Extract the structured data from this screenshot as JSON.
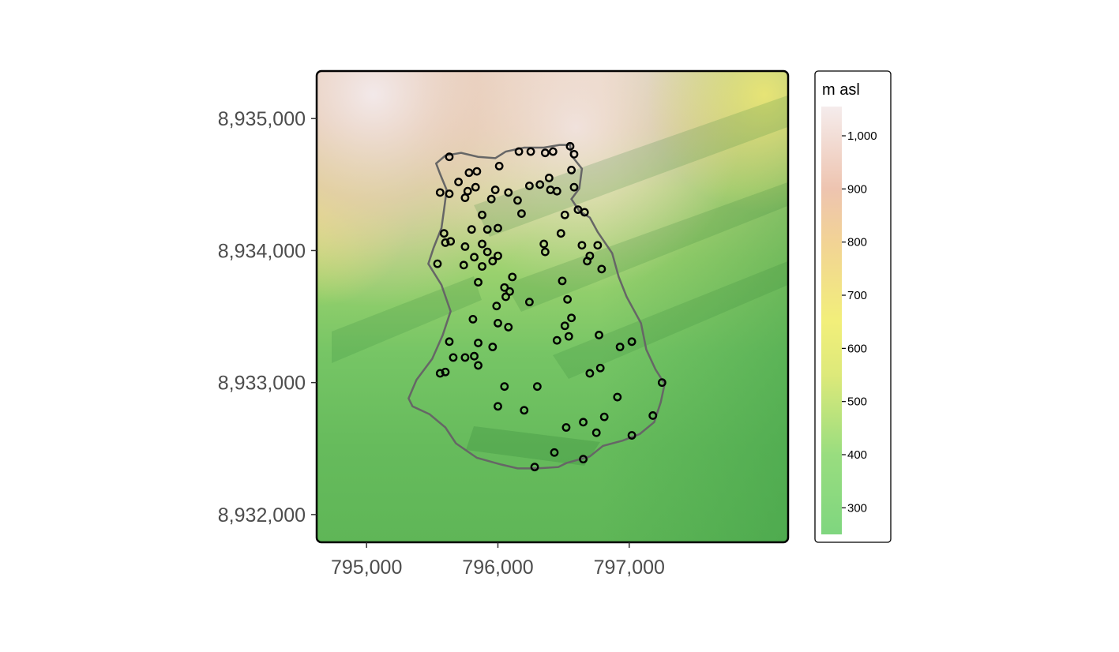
{
  "axes": {
    "x": {
      "unit": "m",
      "ticks": [
        795000,
        796000,
        797000
      ],
      "tick_labels": [
        "795,000",
        "796,000",
        "797,000"
      ],
      "range": [
        794620,
        798210
      ]
    },
    "y": {
      "unit": "m",
      "ticks": [
        8932000,
        8933000,
        8934000,
        8935000
      ],
      "tick_labels": [
        "8,932,000",
        "8,933,000",
        "8,934,000",
        "8,935,000"
      ],
      "range": [
        8931790,
        8935360
      ]
    }
  },
  "legend": {
    "title": "m asl",
    "labels": [
      {
        "text": "1,000",
        "value": 1000
      },
      {
        "text": "900",
        "value": 900
      },
      {
        "text": "800",
        "value": 800
      },
      {
        "text": "700",
        "value": 700
      },
      {
        "text": "600",
        "value": 600
      },
      {
        "text": "500",
        "value": 500
      },
      {
        "text": "400",
        "value": 400
      },
      {
        "text": "300",
        "value": 300
      }
    ],
    "range": [
      250,
      1055
    ],
    "color_stops": [
      {
        "value": 250,
        "color": "#7fd67f"
      },
      {
        "value": 400,
        "color": "#99dd7f"
      },
      {
        "value": 550,
        "color": "#dde97a"
      },
      {
        "value": 650,
        "color": "#f2ef7a"
      },
      {
        "value": 800,
        "color": "#f2d395"
      },
      {
        "value": 900,
        "color": "#eec4b0"
      },
      {
        "value": 1055,
        "color": "#f5ecec"
      }
    ]
  },
  "colors": {
    "boundary": "#666666",
    "points": "#000000",
    "frame": "#000000"
  },
  "boundary": [
    [
      795530,
      8934660
    ],
    [
      795600,
      8934720
    ],
    [
      795720,
      8934740
    ],
    [
      795850,
      8934710
    ],
    [
      795980,
      8934700
    ],
    [
      796060,
      8934750
    ],
    [
      796200,
      8934780
    ],
    [
      796350,
      8934780
    ],
    [
      796470,
      8934800
    ],
    [
      796550,
      8934800
    ],
    [
      796560,
      8934720
    ],
    [
      796640,
      8934620
    ],
    [
      796620,
      8934470
    ],
    [
      796560,
      8934390
    ],
    [
      796620,
      8934300
    ],
    [
      796700,
      8934250
    ],
    [
      796760,
      8934140
    ],
    [
      796870,
      8933980
    ],
    [
      796920,
      8933800
    ],
    [
      796980,
      8933650
    ],
    [
      797090,
      8933450
    ],
    [
      797130,
      8933250
    ],
    [
      797200,
      8933100
    ],
    [
      797270,
      8932990
    ],
    [
      797240,
      8932850
    ],
    [
      797190,
      8932700
    ],
    [
      797080,
      8932610
    ],
    [
      796950,
      8932560
    ],
    [
      796800,
      8932520
    ],
    [
      796700,
      8932440
    ],
    [
      796520,
      8932390
    ],
    [
      796460,
      8932360
    ],
    [
      796300,
      8932350
    ],
    [
      796150,
      8932350
    ],
    [
      796020,
      8932380
    ],
    [
      795840,
      8932430
    ],
    [
      795680,
      8932540
    ],
    [
      795600,
      8932660
    ],
    [
      795480,
      8932760
    ],
    [
      795350,
      8932820
    ],
    [
      795320,
      8932880
    ],
    [
      795380,
      8933020
    ],
    [
      795500,
      8933180
    ],
    [
      795580,
      8933360
    ],
    [
      795640,
      8933540
    ],
    [
      795570,
      8933740
    ],
    [
      795470,
      8933900
    ],
    [
      795510,
      8934020
    ],
    [
      795570,
      8934170
    ],
    [
      795590,
      8934310
    ],
    [
      795610,
      8934460
    ],
    [
      795560,
      8934580
    ],
    [
      795530,
      8934660
    ]
  ],
  "points": [
    [
      795630,
      8934710
    ],
    [
      796010,
      8934640
    ],
    [
      796160,
      8934750
    ],
    [
      796250,
      8934750
    ],
    [
      796360,
      8934740
    ],
    [
      796420,
      8934750
    ],
    [
      796550,
      8934790
    ],
    [
      796580,
      8934730
    ],
    [
      795780,
      8934590
    ],
    [
      795840,
      8934600
    ],
    [
      796560,
      8934610
    ],
    [
      795700,
      8934520
    ],
    [
      796390,
      8934550
    ],
    [
      795560,
      8934440
    ],
    [
      795630,
      8934430
    ],
    [
      795770,
      8934450
    ],
    [
      795830,
      8934480
    ],
    [
      795980,
      8934460
    ],
    [
      796080,
      8934440
    ],
    [
      796240,
      8934490
    ],
    [
      796320,
      8934500
    ],
    [
      796400,
      8934460
    ],
    [
      796450,
      8934450
    ],
    [
      796580,
      8934480
    ],
    [
      795750,
      8934400
    ],
    [
      795950,
      8934390
    ],
    [
      796150,
      8934380
    ],
    [
      796180,
      8934280
    ],
    [
      795880,
      8934270
    ],
    [
      796510,
      8934270
    ],
    [
      796610,
      8934310
    ],
    [
      796660,
      8934290
    ],
    [
      795800,
      8934160
    ],
    [
      795920,
      8934160
    ],
    [
      796000,
      8934170
    ],
    [
      796480,
      8934130
    ],
    [
      795590,
      8934130
    ],
    [
      795600,
      8934060
    ],
    [
      795640,
      8934070
    ],
    [
      796350,
      8934050
    ],
    [
      795750,
      8934030
    ],
    [
      795880,
      8934050
    ],
    [
      796640,
      8934040
    ],
    [
      796760,
      8934040
    ],
    [
      795920,
      8933990
    ],
    [
      795820,
      8933950
    ],
    [
      796000,
      8933960
    ],
    [
      796360,
      8933990
    ],
    [
      795540,
      8933900
    ],
    [
      795740,
      8933890
    ],
    [
      795880,
      8933880
    ],
    [
      795960,
      8933920
    ],
    [
      796700,
      8933960
    ],
    [
      796680,
      8933920
    ],
    [
      796790,
      8933860
    ],
    [
      796110,
      8933800
    ],
    [
      795850,
      8933760
    ],
    [
      796490,
      8933770
    ],
    [
      796050,
      8933720
    ],
    [
      796090,
      8933690
    ],
    [
      796060,
      8933650
    ],
    [
      795990,
      8933580
    ],
    [
      796240,
      8933610
    ],
    [
      796530,
      8933630
    ],
    [
      795810,
      8933480
    ],
    [
      796000,
      8933450
    ],
    [
      796080,
      8933420
    ],
    [
      796560,
      8933490
    ],
    [
      796510,
      8933430
    ],
    [
      796770,
      8933360
    ],
    [
      796540,
      8933350
    ],
    [
      795630,
      8933310
    ],
    [
      795850,
      8933300
    ],
    [
      795960,
      8933270
    ],
    [
      796450,
      8933320
    ],
    [
      796930,
      8933270
    ],
    [
      797020,
      8933310
    ],
    [
      795560,
      8933070
    ],
    [
      795600,
      8933080
    ],
    [
      795660,
      8933190
    ],
    [
      795750,
      8933190
    ],
    [
      795820,
      8933200
    ],
    [
      795850,
      8933130
    ],
    [
      796780,
      8933110
    ],
    [
      796700,
      8933070
    ],
    [
      796050,
      8932970
    ],
    [
      796300,
      8932970
    ],
    [
      796910,
      8932890
    ],
    [
      797250,
      8933000
    ],
    [
      796000,
      8932820
    ],
    [
      796200,
      8932790
    ],
    [
      796810,
      8932740
    ],
    [
      797180,
      8932750
    ],
    [
      796650,
      8932700
    ],
    [
      796520,
      8932660
    ],
    [
      796750,
      8932620
    ],
    [
      797020,
      8932600
    ],
    [
      796430,
      8932470
    ],
    [
      796650,
      8932420
    ],
    [
      796280,
      8932360
    ]
  ]
}
